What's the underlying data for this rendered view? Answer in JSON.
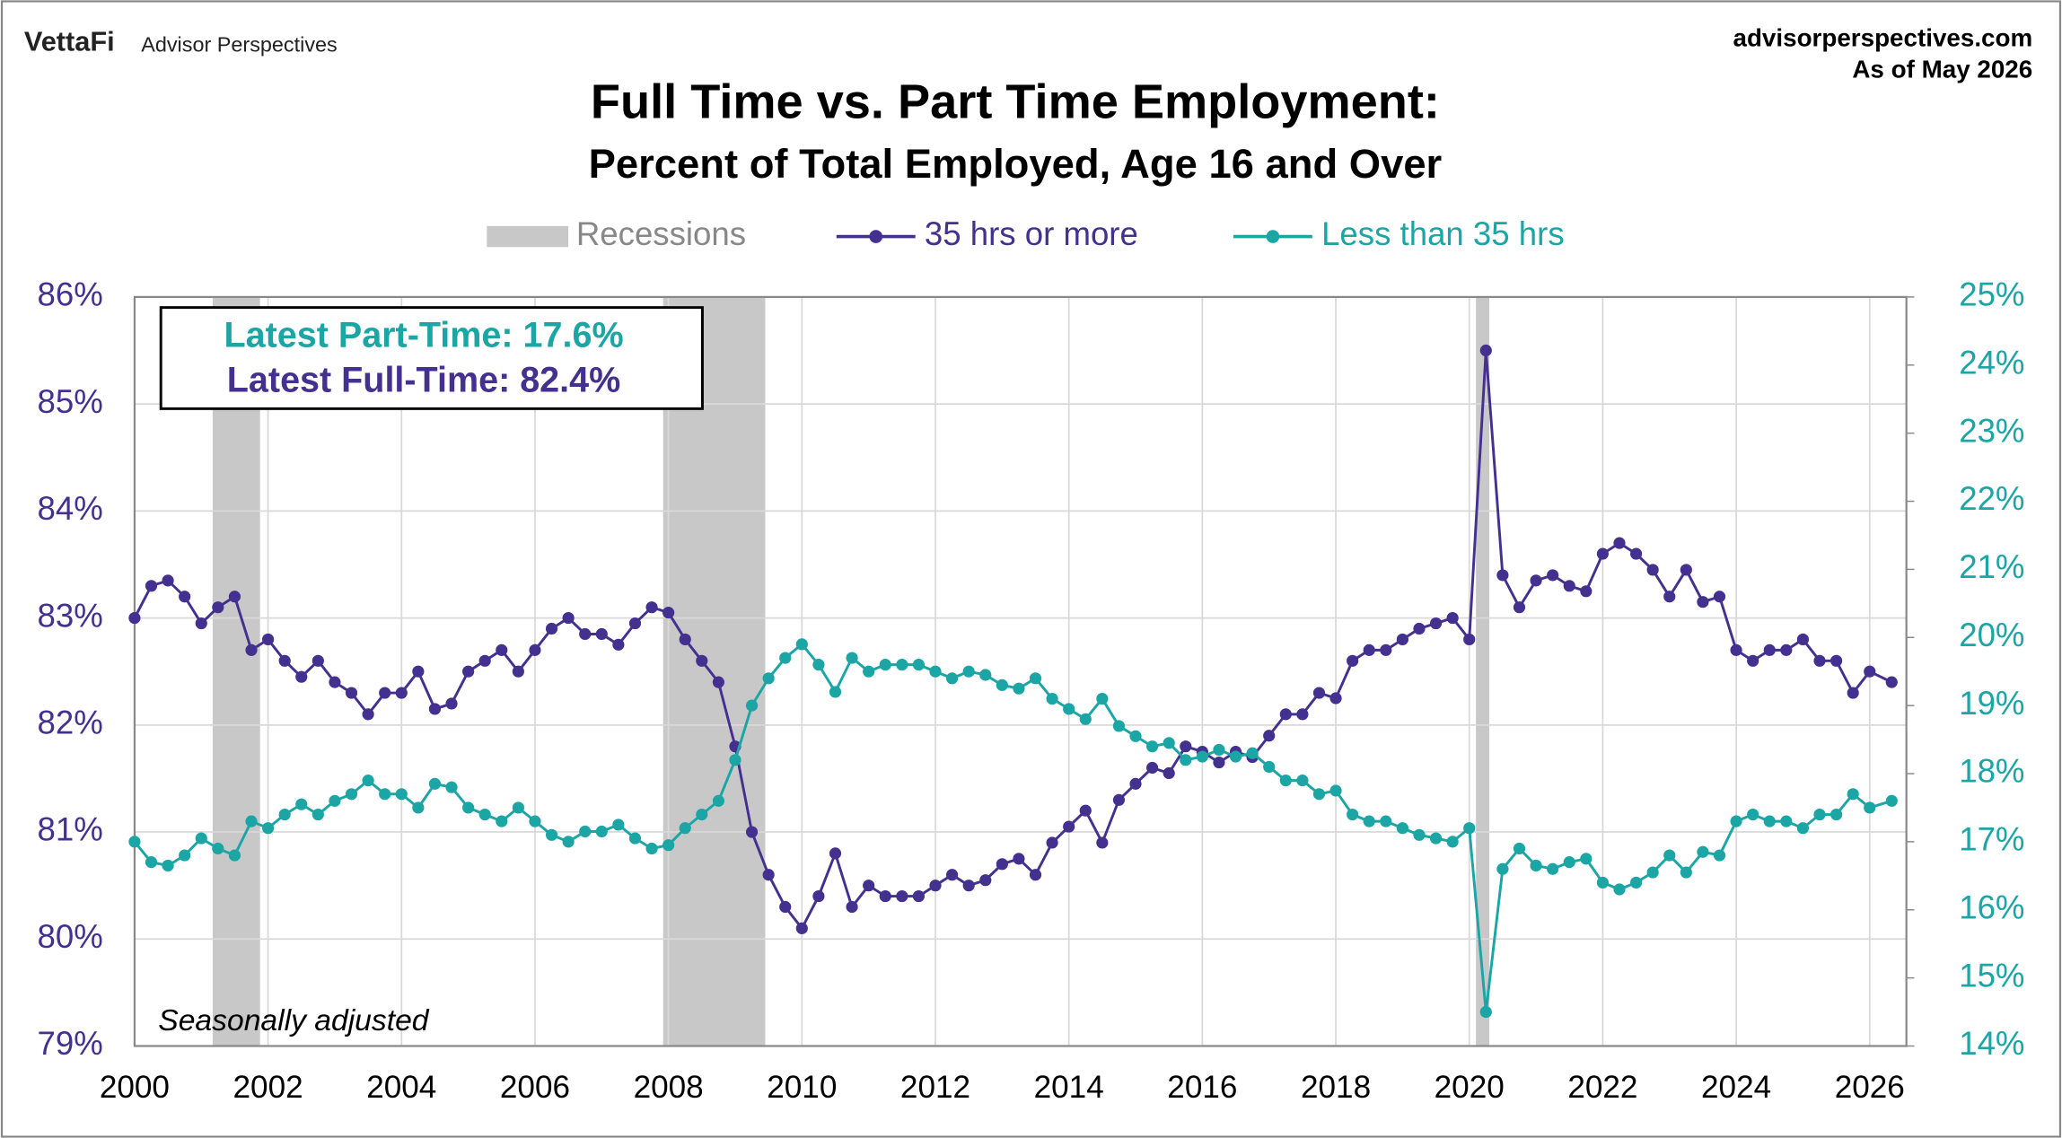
{
  "header": {
    "brand": "VettaFi",
    "product": "Advisor Perspectives",
    "site": "advisorperspectives.com",
    "date": "As of May 2026"
  },
  "chart_data": {
    "type": "line",
    "title": "Full Time vs. Part Time Employment:",
    "subtitle": "Percent of Total Employed, Age 16 and Over",
    "annotations": {
      "part_time": "Latest Part-Time: 17.6%",
      "full_time": "Latest Full-Time: 82.4%",
      "note": "Seasonally adjusted"
    },
    "recessions": {
      "name": "Recessions",
      "color": "#c8c8c8",
      "spans": [
        [
          2001.17,
          2001.88
        ],
        [
          2007.92,
          2009.45
        ],
        [
          2020.1,
          2020.3
        ]
      ]
    },
    "xlim": [
      2000,
      2026.55
    ],
    "xticks": [
      2000,
      2002,
      2004,
      2006,
      2008,
      2010,
      2012,
      2014,
      2016,
      2018,
      2020,
      2022,
      2024,
      2026
    ],
    "ylim": [
      79,
      86
    ],
    "yticks": [
      {
        "value": 79,
        "label": "79%"
      },
      {
        "value": 80,
        "label": "80%"
      },
      {
        "value": 81,
        "label": "81%"
      },
      {
        "value": 82,
        "label": "82%"
      },
      {
        "value": 83,
        "label": "83%"
      },
      {
        "value": 84,
        "label": "84%"
      },
      {
        "value": 85,
        "label": "85%"
      },
      {
        "value": 86,
        "label": "86%"
      }
    ],
    "y2lim": [
      14,
      25
    ],
    "y2ticks": [
      {
        "value": 14,
        "label": "14%"
      },
      {
        "value": 15,
        "label": "15%"
      },
      {
        "value": 16,
        "label": "16%"
      },
      {
        "value": 17,
        "label": "17%"
      },
      {
        "value": 18,
        "label": "18%"
      },
      {
        "value": 19,
        "label": "19%"
      },
      {
        "value": 20,
        "label": "20%"
      },
      {
        "value": 21,
        "label": "21%"
      },
      {
        "value": 22,
        "label": "22%"
      },
      {
        "value": 23,
        "label": "23%"
      },
      {
        "value": 24,
        "label": "24%"
      },
      {
        "value": 25,
        "label": "25%"
      }
    ],
    "grid": true,
    "legend": "top",
    "x": [
      2000,
      2000.25,
      2000.5,
      2000.75,
      2001,
      2001.25,
      2001.5,
      2001.75,
      2002,
      2002.25,
      2002.5,
      2002.75,
      2003,
      2003.25,
      2003.5,
      2003.75,
      2004,
      2004.25,
      2004.5,
      2004.75,
      2005,
      2005.25,
      2005.5,
      2005.75,
      2006,
      2006.25,
      2006.5,
      2006.75,
      2007,
      2007.25,
      2007.5,
      2007.75,
      2008,
      2008.25,
      2008.5,
      2008.75,
      2009,
      2009.25,
      2009.5,
      2009.75,
      2010,
      2010.25,
      2010.5,
      2010.75,
      2011,
      2011.25,
      2011.5,
      2011.75,
      2012,
      2012.25,
      2012.5,
      2012.75,
      2013,
      2013.25,
      2013.5,
      2013.75,
      2014,
      2014.25,
      2014.5,
      2014.75,
      2015,
      2015.25,
      2015.5,
      2015.75,
      2016,
      2016.25,
      2016.5,
      2016.75,
      2017,
      2017.25,
      2017.5,
      2017.75,
      2018,
      2018.25,
      2018.5,
      2018.75,
      2019,
      2019.25,
      2019.5,
      2019.75,
      2020,
      2020.25,
      2020.5,
      2020.75,
      2021,
      2021.25,
      2021.5,
      2021.75,
      2022,
      2022.25,
      2022.5,
      2022.75,
      2023,
      2023.25,
      2023.5,
      2023.75,
      2024,
      2024.25,
      2024.5,
      2024.75,
      2025,
      2025.25,
      2025.5,
      2025.75,
      2026,
      2026.33
    ],
    "series": [
      {
        "name": "35 hrs or more",
        "color": "#43308f",
        "axis": "y",
        "values": [
          83.0,
          83.3,
          83.35,
          83.2,
          82.95,
          83.1,
          83.2,
          82.7,
          82.8,
          82.6,
          82.45,
          82.6,
          82.4,
          82.3,
          82.1,
          82.3,
          82.3,
          82.5,
          82.15,
          82.2,
          82.5,
          82.6,
          82.7,
          82.5,
          82.7,
          82.9,
          83.0,
          82.85,
          82.85,
          82.75,
          82.95,
          83.1,
          83.05,
          82.8,
          82.6,
          82.4,
          81.8,
          81.0,
          80.6,
          80.3,
          80.1,
          80.4,
          80.8,
          80.3,
          80.5,
          80.4,
          80.4,
          80.4,
          80.5,
          80.6,
          80.5,
          80.55,
          80.7,
          80.75,
          80.6,
          80.9,
          81.05,
          81.2,
          80.9,
          81.3,
          81.45,
          81.6,
          81.55,
          81.8,
          81.75,
          81.65,
          81.75,
          81.7,
          81.9,
          82.1,
          82.1,
          82.3,
          82.25,
          82.6,
          82.7,
          82.7,
          82.8,
          82.9,
          82.95,
          83.0,
          82.8,
          85.5,
          83.4,
          83.1,
          83.35,
          83.4,
          83.3,
          83.25,
          83.6,
          83.7,
          83.6,
          83.45,
          83.2,
          83.45,
          83.15,
          83.2,
          82.7,
          82.6,
          82.7,
          82.7,
          82.8,
          82.6,
          82.6,
          82.3,
          82.5,
          82.4
        ]
      },
      {
        "name": "Less than 35 hrs",
        "color": "#1ba5a5",
        "axis": "y2",
        "values": [
          17.0,
          16.7,
          16.65,
          16.8,
          17.05,
          16.9,
          16.8,
          17.3,
          17.2,
          17.4,
          17.55,
          17.4,
          17.6,
          17.7,
          17.9,
          17.7,
          17.7,
          17.5,
          17.85,
          17.8,
          17.5,
          17.4,
          17.3,
          17.5,
          17.3,
          17.1,
          17.0,
          17.15,
          17.15,
          17.25,
          17.05,
          16.9,
          16.95,
          17.2,
          17.4,
          17.6,
          18.2,
          19.0,
          19.4,
          19.7,
          19.9,
          19.6,
          19.2,
          19.7,
          19.5,
          19.6,
          19.6,
          19.6,
          19.5,
          19.4,
          19.5,
          19.45,
          19.3,
          19.25,
          19.4,
          19.1,
          18.95,
          18.8,
          19.1,
          18.7,
          18.55,
          18.4,
          18.45,
          18.2,
          18.25,
          18.35,
          18.25,
          18.3,
          18.1,
          17.9,
          17.9,
          17.7,
          17.75,
          17.4,
          17.3,
          17.3,
          17.2,
          17.1,
          17.05,
          17.0,
          17.2,
          14.5,
          16.6,
          16.9,
          16.65,
          16.6,
          16.7,
          16.75,
          16.4,
          16.3,
          16.4,
          16.55,
          16.8,
          16.55,
          16.85,
          16.8,
          17.3,
          17.4,
          17.3,
          17.3,
          17.2,
          17.4,
          17.4,
          17.7,
          17.5,
          17.6
        ]
      }
    ]
  }
}
